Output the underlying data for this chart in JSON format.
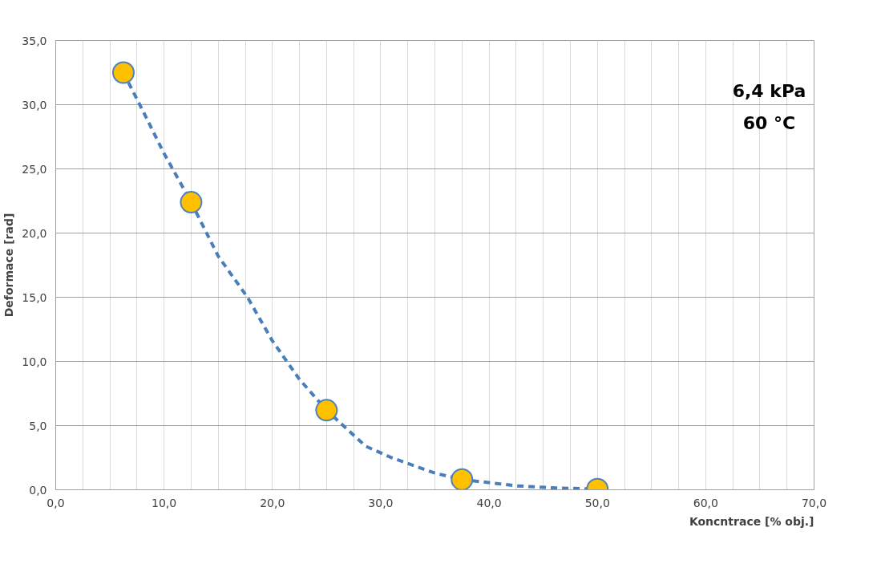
{
  "chart_data": {
    "type": "scatter",
    "xlabel": "Koncntrace [% obj.]",
    "ylabel": "Deformace [rad]",
    "annotations": [
      "6,4 kPa",
      "60 °C"
    ],
    "xlim": [
      0,
      70
    ],
    "ylim": [
      0,
      35
    ],
    "xticks": [
      {
        "value": 0,
        "label": "0,0"
      },
      {
        "value": 10,
        "label": "10,0"
      },
      {
        "value": 20,
        "label": "20,0"
      },
      {
        "value": 30,
        "label": "30,0"
      },
      {
        "value": 40,
        "label": "40,0"
      },
      {
        "value": 50,
        "label": "50,0"
      },
      {
        "value": 60,
        "label": "60,0"
      },
      {
        "value": 70,
        "label": "70,0"
      }
    ],
    "yticks": [
      {
        "value": 0,
        "label": "0,0"
      },
      {
        "value": 5,
        "label": "5,0"
      },
      {
        "value": 10,
        "label": "10,0"
      },
      {
        "value": 15,
        "label": "15,0"
      },
      {
        "value": 20,
        "label": "20,0"
      },
      {
        "value": 25,
        "label": "25,0"
      },
      {
        "value": 30,
        "label": "30,0"
      },
      {
        "value": 35,
        "label": "35,0"
      }
    ],
    "grid": true,
    "series": [
      {
        "type": "line",
        "color": "#4a7ebb",
        "line_style": "dashed",
        "marker": "none",
        "x": [
          6.25,
          8,
          10,
          12.5,
          15,
          17.7,
          20,
          22.5,
          25,
          28.6,
          31,
          35,
          37.5,
          42.6,
          46,
          50
        ],
        "values": [
          32.5,
          29.6,
          26.2,
          22.4,
          18.2,
          15,
          11.6,
          8.6,
          6.2,
          3.4,
          2.5,
          1.3,
          0.8,
          0.3,
          0.15,
          0.05
        ]
      },
      {
        "color": "#ffc000",
        "marker": "circle",
        "x": [
          6.25,
          12.5,
          25,
          37.5,
          50
        ],
        "values": [
          32.5,
          22.4,
          6.2,
          0.8,
          0.05
        ]
      }
    ]
  }
}
